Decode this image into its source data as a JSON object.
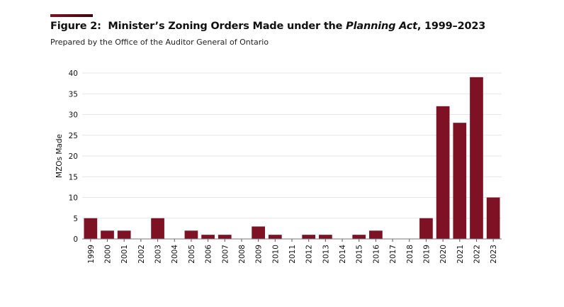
{
  "figure": {
    "label": "Figure 2:",
    "title_pre": "Minister’s Zoning Orders Made under the",
    "title_em": "Planning Act",
    "title_post": ", 1999–2023",
    "subtitle": "Prepared by the Office of the Auditor General of Ontario"
  },
  "colors": {
    "bar": "#7f1124",
    "accent": "#7a1326",
    "grid": "#e6e6e6"
  },
  "chart_data": {
    "type": "bar",
    "title": "Figure 2: Minister’s Zoning Orders Made under the Planning Act, 1999–2023",
    "subtitle": "Prepared by the Office of the Auditor General of Ontario",
    "xlabel": "",
    "ylabel": "MZOs Made",
    "ylim": [
      0,
      40
    ],
    "yticks": [
      0,
      5,
      10,
      15,
      20,
      25,
      30,
      35,
      40
    ],
    "grid": "horizontal",
    "legend": "none",
    "categories": [
      "1999",
      "2000",
      "2001",
      "2002",
      "2003",
      "2004",
      "2005",
      "2006",
      "2007",
      "2008",
      "2009",
      "2010",
      "2011",
      "2012",
      "2013",
      "2014",
      "2015",
      "2016",
      "2017",
      "2018",
      "2019",
      "2020",
      "2021",
      "2022",
      "2023"
    ],
    "values": [
      5,
      2,
      2,
      0,
      5,
      0,
      2,
      1,
      1,
      0,
      3,
      1,
      0,
      1,
      1,
      0,
      1,
      2,
      0,
      0,
      5,
      32,
      28,
      39,
      10
    ]
  }
}
